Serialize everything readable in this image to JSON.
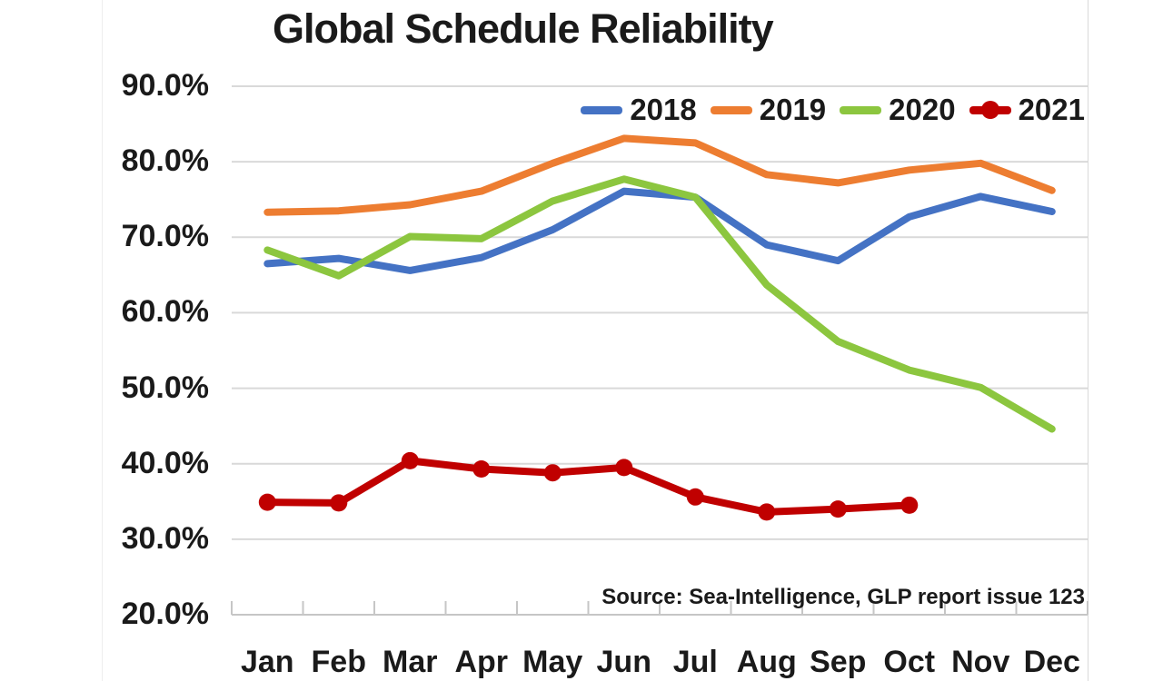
{
  "chart_data": {
    "type": "line",
    "title": "Global Schedule Reliability",
    "source_note": "Source: Sea-Intelligence, GLP report issue 123",
    "categories": [
      "Jan",
      "Feb",
      "Mar",
      "Apr",
      "May",
      "Jun",
      "Jul",
      "Aug",
      "Sep",
      "Oct",
      "Nov",
      "Dec"
    ],
    "y_axis": {
      "min": 20,
      "max": 90,
      "tick_step": 10,
      "tick_labels": [
        "90.0%",
        "80.0%",
        "70.0%",
        "60.0%",
        "50.0%",
        "40.0%",
        "30.0%",
        "20.0%"
      ],
      "unit": "%"
    },
    "grid": "horizontal",
    "legend_position": "top-right",
    "series": [
      {
        "name": "2018",
        "color": "#4472C4",
        "markers": false,
        "values": [
          66.5,
          67.2,
          65.6,
          67.3,
          71.0,
          76.1,
          75.3,
          69.0,
          66.9,
          72.7,
          75.4,
          73.4
        ]
      },
      {
        "name": "2019",
        "color": "#ED7D31",
        "markers": false,
        "values": [
          73.3,
          73.5,
          74.3,
          76.1,
          79.8,
          83.1,
          82.5,
          78.3,
          77.2,
          78.9,
          79.8,
          76.2
        ]
      },
      {
        "name": "2020",
        "color": "#8CC63F",
        "markers": false,
        "values": [
          68.3,
          64.9,
          70.1,
          69.8,
          74.8,
          77.7,
          75.3,
          63.7,
          56.2,
          52.4,
          50.1,
          44.6
        ]
      },
      {
        "name": "2021",
        "color": "#C00000",
        "markers": true,
        "values": [
          34.9,
          34.8,
          40.4,
          39.3,
          38.8,
          39.5,
          35.6,
          33.6,
          34.0,
          34.5,
          null,
          null
        ]
      }
    ],
    "colors": {
      "gridline": "#D9D9D9",
      "axis": "#C6C6C6",
      "text": "#1A1A1A",
      "background": "#FFFFFF"
    }
  }
}
